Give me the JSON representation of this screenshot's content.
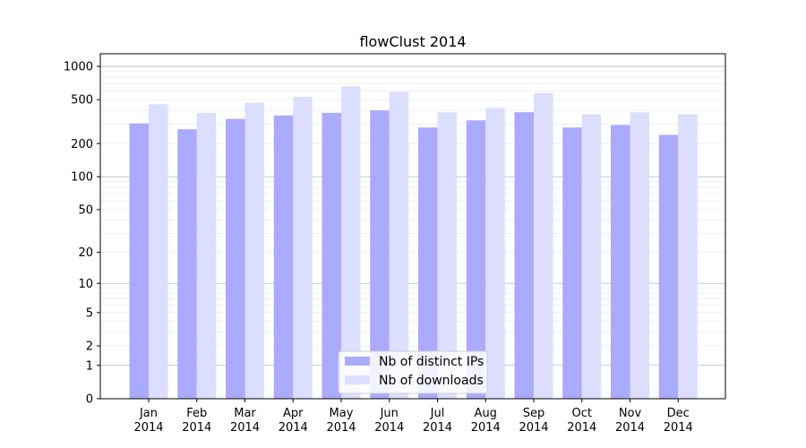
{
  "chart_data": {
    "type": "bar",
    "title": "flowClust 2014",
    "xlabel": "",
    "ylabel": "",
    "y_scale": "symlog",
    "ylim": [
      0,
      1300
    ],
    "yticks": [
      0,
      1,
      2,
      5,
      10,
      20,
      50,
      100,
      200,
      500,
      1000
    ],
    "grid": true,
    "legend_position": "bottom-center",
    "categories": [
      "Jan\n2014",
      "Feb\n2014",
      "Mar\n2014",
      "Apr\n2014",
      "May\n2014",
      "Jun\n2014",
      "Jul\n2014",
      "Aug\n2014",
      "Sep\n2014",
      "Oct\n2014",
      "Nov\n2014",
      "Dec\n2014"
    ],
    "series": [
      {
        "name": "Nb of distinct IPs",
        "color": "#aaaaff",
        "values": [
          305,
          270,
          335,
          360,
          380,
          400,
          280,
          325,
          385,
          280,
          295,
          240
        ]
      },
      {
        "name": "Nb of downloads",
        "color": "#ddddff",
        "values": [
          455,
          380,
          470,
          530,
          660,
          590,
          385,
          420,
          575,
          370,
          385,
          370
        ]
      }
    ]
  }
}
